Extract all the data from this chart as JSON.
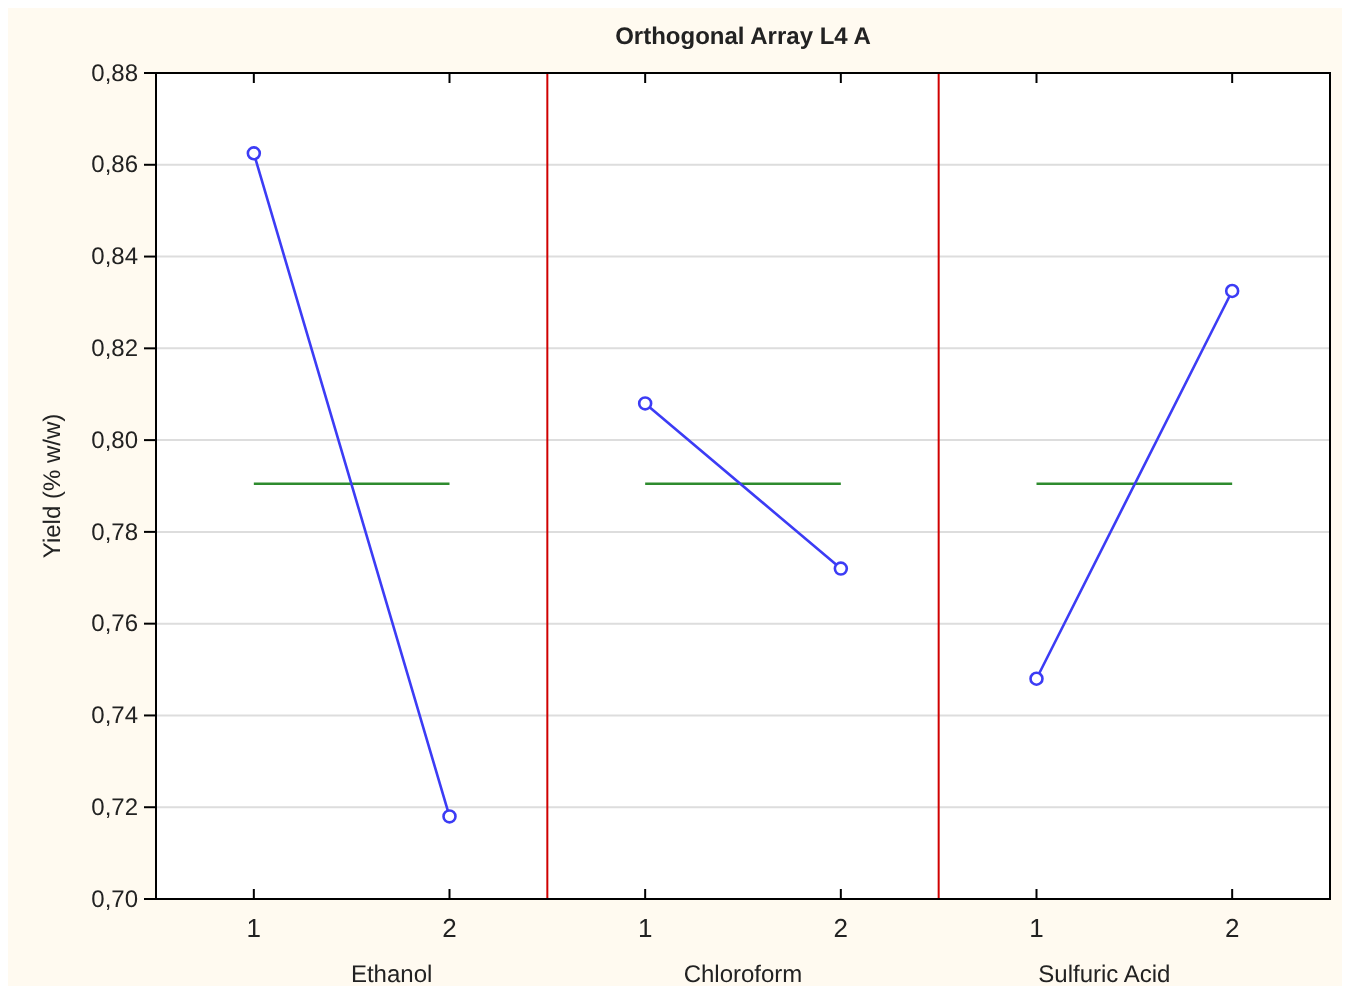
{
  "chart_data": [
    {
      "type": "line",
      "ylabel": "Yield (% w/w)",
      "xlabel": "Ethanol",
      "categories": [
        "1",
        "2"
      ],
      "series": [
        {
          "color": "#3c3cf5",
          "values": [
            0.8625,
            0.718
          ]
        }
      ],
      "ylim": [
        0.7,
        0.88
      ],
      "yticks": [
        {
          "value": 0.7,
          "label": "0,70"
        },
        {
          "value": 0.72,
          "label": "0,72"
        },
        {
          "value": 0.74,
          "label": "0,74"
        },
        {
          "value": 0.76,
          "label": "0,76"
        },
        {
          "value": 0.78,
          "label": "0,78"
        },
        {
          "value": 0.8,
          "label": "0,80"
        },
        {
          "value": 0.82,
          "label": "0,82"
        },
        {
          "value": 0.84,
          "label": "0,84"
        },
        {
          "value": 0.86,
          "label": "0,86"
        },
        {
          "value": 0.88,
          "label": "0,88"
        }
      ],
      "ref_lines": [
        {
          "axis": "y",
          "value": 0.7905,
          "color": "#2e8b2e"
        }
      ],
      "grid": "y",
      "marker": "circle"
    },
    {
      "type": "line",
      "title": "Orthogonal Array L4 A",
      "xlabel": "Chloroform",
      "categories": [
        "1",
        "2"
      ],
      "series": [
        {
          "color": "#3c3cf5",
          "values": [
            0.808,
            0.772
          ]
        }
      ],
      "ylim": [
        0.7,
        0.88
      ],
      "yticks": [
        0.7,
        0.72,
        0.74,
        0.76,
        0.78,
        0.8,
        0.82,
        0.84,
        0.86,
        0.88
      ],
      "ref_lines": [
        {
          "axis": "y",
          "value": 0.7905,
          "color": "#2e8b2e"
        }
      ],
      "grid": "y",
      "marker": "circle",
      "tick_labels": "x"
    },
    {
      "type": "line",
      "xlabel": "Sulfuric Acid",
      "categories": [
        "1",
        "2"
      ],
      "series": [
        {
          "color": "#3c3cf5",
          "values": [
            0.748,
            0.8325
          ]
        }
      ],
      "ylim": [
        0.7,
        0.88
      ],
      "yticks": [
        0.7,
        0.72,
        0.74,
        0.76,
        0.78,
        0.8,
        0.82,
        0.84,
        0.86,
        0.88
      ],
      "ref_lines": [
        {
          "axis": "y",
          "value": 0.7905,
          "color": "#2e8b2e"
        }
      ],
      "grid": "y",
      "marker": "circle",
      "tick_labels": "x"
    }
  ]
}
